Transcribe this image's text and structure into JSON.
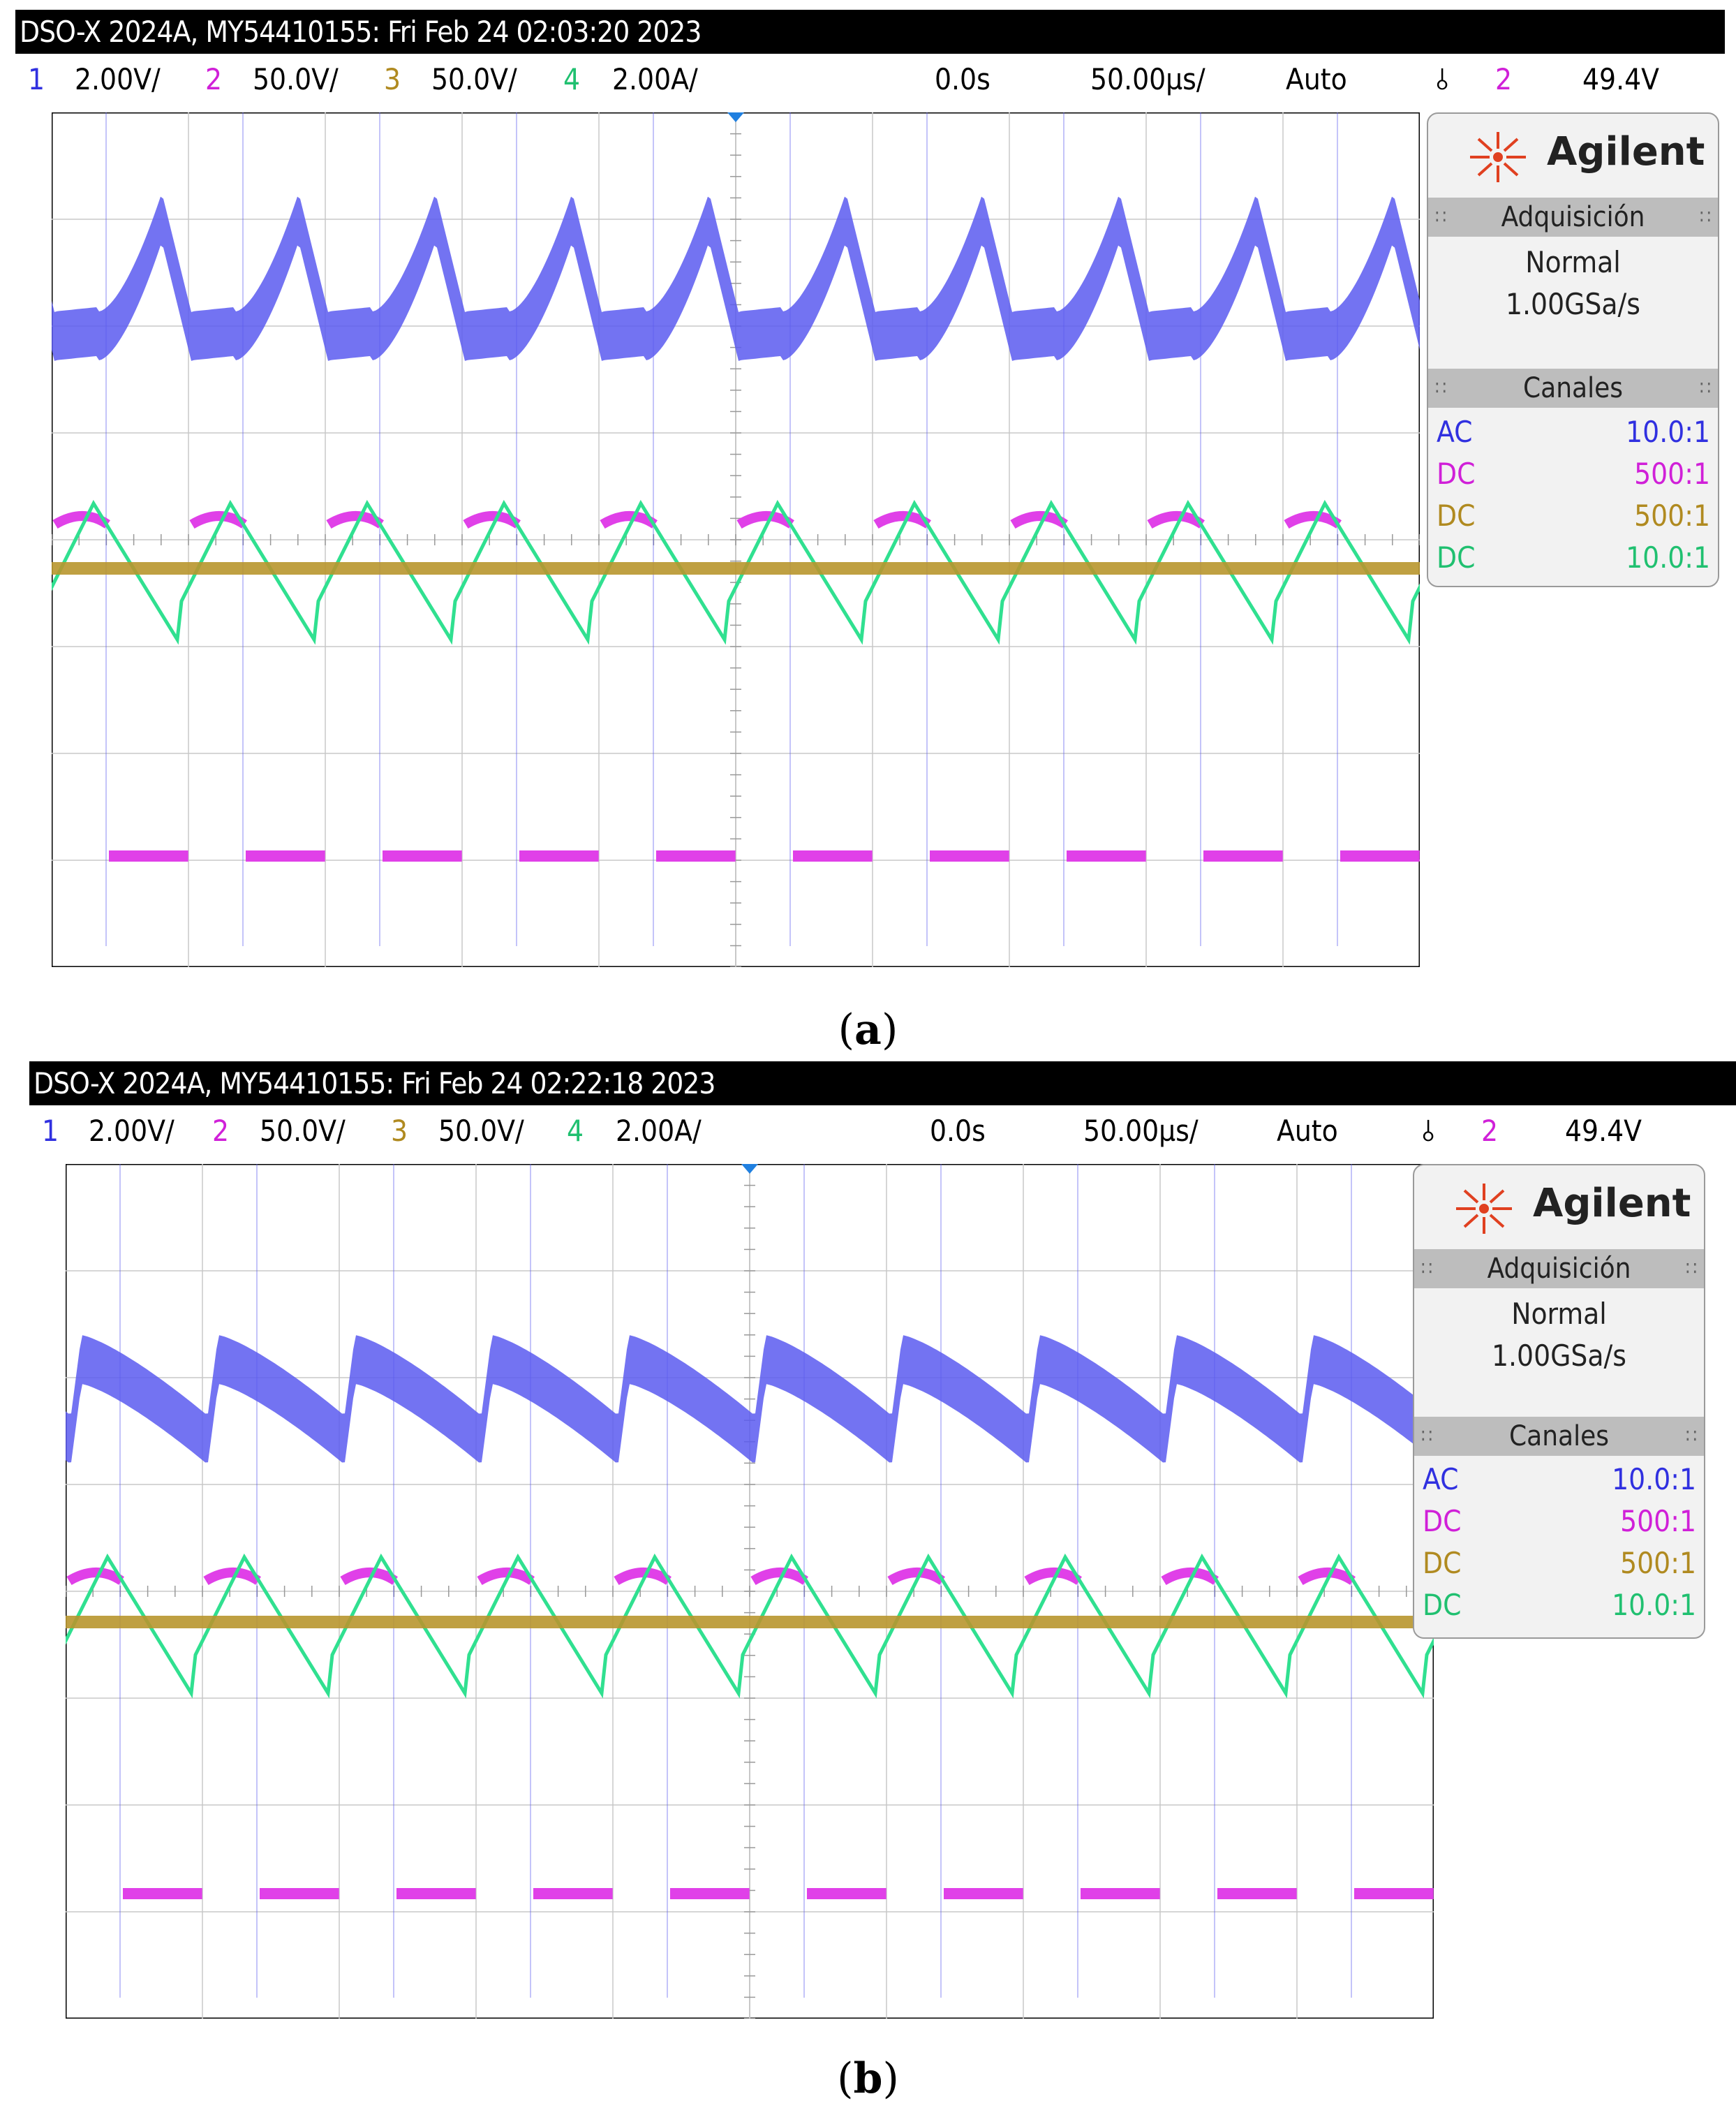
{
  "panels": [
    {
      "title": "DSO-X 2024A, MY54410155: Fri Feb 24 02:03:20 2023",
      "status": {
        "ch1_num": "1",
        "ch1_scale": "2.00V/",
        "ch2_num": "2",
        "ch2_scale": "50.0V/",
        "ch3_num": "3",
        "ch3_scale": "50.0V/",
        "ch4_num": "4",
        "ch4_scale": "2.00A/",
        "delay": "0.0s",
        "timebase": "50.00µs/",
        "mode": "Auto",
        "trig_source": "2",
        "trig_level": "49.4V"
      },
      "markers": {
        "ch1": "1",
        "trig": "T",
        "ch2": "2"
      },
      "side": {
        "brand": "Agilent",
        "acq_header": "Adquisición",
        "acq_mode": "Normal",
        "acq_rate": "1.00GSa/s",
        "ch_header": "Canales",
        "channels": [
          {
            "coupling": "AC",
            "probe": "10.0:1"
          },
          {
            "coupling": "DC",
            "probe": "500:1"
          },
          {
            "coupling": "DC",
            "probe": "500:1"
          },
          {
            "coupling": "DC",
            "probe": "10.0:1"
          }
        ]
      },
      "caption_label": "a"
    },
    {
      "title": "DSO-X 2024A, MY54410155: Fri Feb 24 02:22:18 2023",
      "status": {
        "ch1_num": "1",
        "ch1_scale": "2.00V/",
        "ch2_num": "2",
        "ch2_scale": "50.0V/",
        "ch3_num": "3",
        "ch3_scale": "50.0V/",
        "ch4_num": "4",
        "ch4_scale": "2.00A/",
        "delay": "0.0s",
        "timebase": "50.00µs/",
        "mode": "Auto",
        "trig_source": "2",
        "trig_level": "49.4V"
      },
      "markers": {
        "ch1": "1",
        "trig": "T",
        "ch2": "2"
      },
      "side": {
        "brand": "Agilent",
        "acq_header": "Adquisición",
        "acq_mode": "Normal",
        "acq_rate": "1.00GSa/s",
        "ch_header": "Canales",
        "channels": [
          {
            "coupling": "AC",
            "probe": "10.0:1"
          },
          {
            "coupling": "DC",
            "probe": "500:1"
          },
          {
            "coupling": "DC",
            "probe": "500:1"
          },
          {
            "coupling": "DC",
            "probe": "10.0:1"
          }
        ]
      },
      "caption_label": "b"
    }
  ],
  "colors": {
    "ch1": "#5a5af0",
    "ch2": "#e040e8",
    "ch3": "#b8962e",
    "ch4": "#30e090",
    "grid": "#c8c8c8"
  }
}
